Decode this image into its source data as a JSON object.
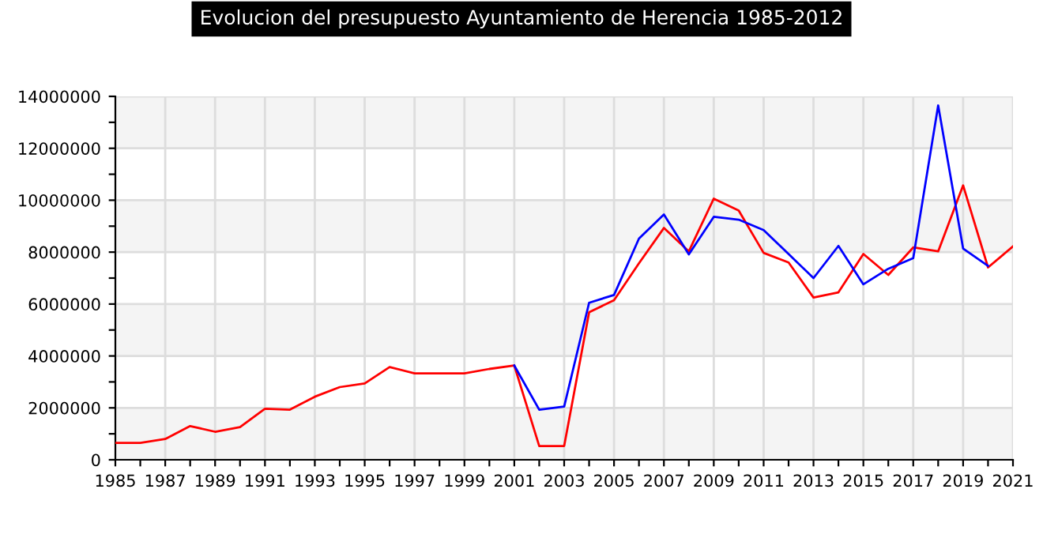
{
  "chart_data": {
    "type": "line",
    "title": "Evolucion del presupuesto Ayuntamiento de Herencia 1985-2012",
    "xlim": [
      1985,
      2021
    ],
    "xticks": [
      1985,
      {
        "value": 1986,
        "label": null
      },
      1987,
      {
        "value": 1988,
        "label": null
      },
      1989,
      {
        "value": 1990,
        "label": null
      },
      1991,
      {
        "value": 1992,
        "label": null
      },
      1993,
      {
        "value": 1994,
        "label": null
      },
      1995,
      {
        "value": 1996,
        "label": null
      },
      1997,
      {
        "value": 1998,
        "label": null
      },
      1999,
      {
        "value": 2000,
        "label": null
      },
      2001,
      {
        "value": 2002,
        "label": null
      },
      2003,
      {
        "value": 2004,
        "label": null
      },
      2005,
      {
        "value": 2006,
        "label": null
      },
      2007,
      {
        "value": 2008,
        "label": null
      },
      2009,
      {
        "value": 2010,
        "label": null
      },
      2011,
      {
        "value": 2012,
        "label": null
      },
      2013,
      {
        "value": 2014,
        "label": null
      },
      2015,
      {
        "value": 2016,
        "label": null
      },
      2017,
      {
        "value": 2018,
        "label": null
      },
      2019,
      {
        "value": 2020,
        "label": null
      },
      2021
    ],
    "ylim": [
      0,
      14000000
    ],
    "yticks": [
      0,
      {
        "value": 1000000,
        "label": null
      },
      2000000,
      {
        "value": 3000000,
        "label": null
      },
      4000000,
      {
        "value": 5000000,
        "label": null
      },
      6000000,
      {
        "value": 7000000,
        "label": null
      },
      8000000,
      {
        "value": 9000000,
        "label": null
      },
      10000000,
      {
        "value": 11000000,
        "label": null
      },
      12000000,
      {
        "value": 13000000,
        "label": null
      },
      14000000
    ],
    "grid": true,
    "marker": "none",
    "line_style": "solid",
    "series": [
      {
        "color": "#ff0000",
        "x": [
          1985,
          1986,
          1987,
          1988,
          1989,
          1990,
          1991,
          1992,
          1993,
          1994,
          1995,
          1996,
          1997,
          1998,
          1999,
          2000,
          2001,
          2002,
          2003,
          2004,
          2005,
          2006,
          2007,
          2008,
          2009,
          2010,
          2011,
          2012,
          2013,
          2014,
          2015,
          2016,
          2017,
          2018,
          2019,
          2020,
          2021
        ],
        "values": [
          650000,
          650000,
          800000,
          1300000,
          1080000,
          1260000,
          1970000,
          1930000,
          2430000,
          2800000,
          2940000,
          3570000,
          3330000,
          3330000,
          3330000,
          3500000,
          3630000,
          530000,
          530000,
          5680000,
          6150000,
          7570000,
          8930000,
          8030000,
          10060000,
          9600000,
          7970000,
          7600000,
          6250000,
          6450000,
          7930000,
          7120000,
          8180000,
          8030000,
          10570000,
          7410000,
          8220000
        ]
      },
      {
        "color": "#0000ff",
        "x": [
          2001,
          2002,
          2003,
          2004,
          2005,
          2006,
          2007,
          2008,
          2009,
          2010,
          2011,
          2012,
          2013,
          2014,
          2015,
          2016,
          2017,
          2018,
          2019,
          2020
        ],
        "values": [
          3630000,
          1930000,
          2050000,
          6050000,
          6350000,
          8520000,
          9450000,
          7910000,
          9360000,
          9250000,
          8850000,
          7930000,
          7000000,
          8240000,
          6760000,
          7360000,
          7770000,
          13650000,
          8140000,
          7470000
        ]
      }
    ]
  }
}
